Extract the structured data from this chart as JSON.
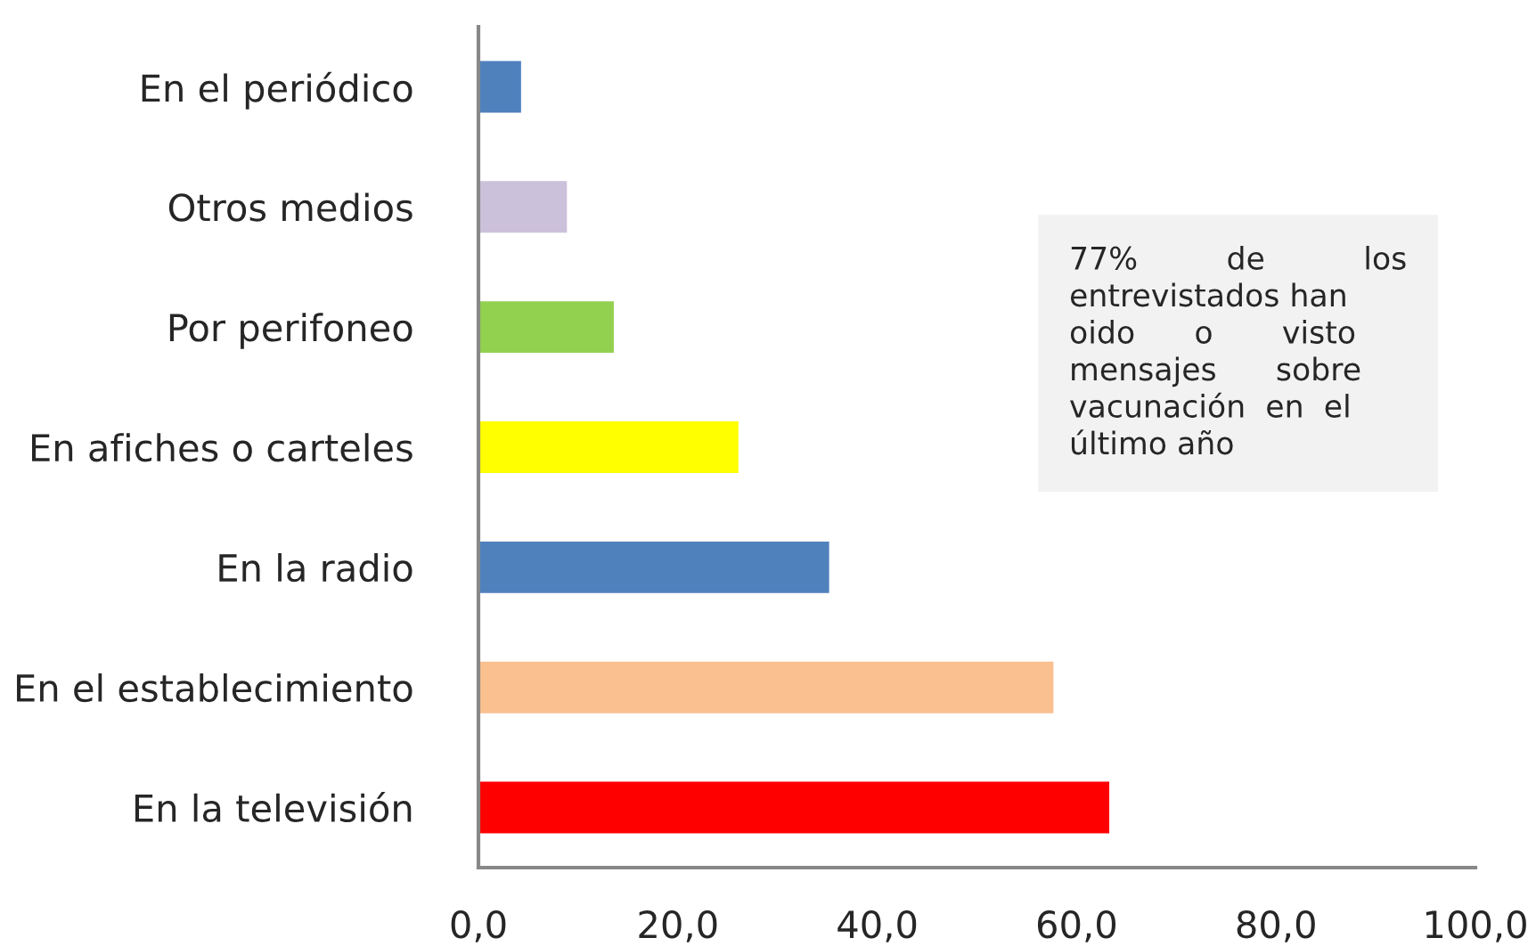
{
  "chart_data": {
    "type": "bar",
    "orientation": "horizontal",
    "categories": [
      "En el periódico",
      "Otros medios",
      "Por perifoneo",
      "En afiches o carteles",
      "En la radio",
      "En el establecimiento",
      "En la televisión"
    ],
    "values": [
      4.4,
      9.0,
      13.7,
      26.2,
      35.3,
      57.8,
      63.4
    ],
    "colors": [
      "#4f81bd",
      "#ccc1da",
      "#92d050",
      "#ffff00",
      "#4f81bd",
      "#fac090",
      "#ff0000"
    ],
    "xlim": [
      0,
      100
    ],
    "xticks": [
      {
        "value": 0,
        "label": "0,0"
      },
      {
        "value": 20,
        "label": "20,0"
      },
      {
        "value": 40,
        "label": "40,0"
      },
      {
        "value": 60,
        "label": "60,0"
      },
      {
        "value": 80,
        "label": "80,0"
      },
      {
        "value": 100,
        "label": "100,0"
      }
    ],
    "grid": false,
    "annotations": [
      "77%         de          los\nentrevistados han\noido      o       visto\nmensajes      sobre\nvacunación  en  el\núltimo año"
    ]
  }
}
